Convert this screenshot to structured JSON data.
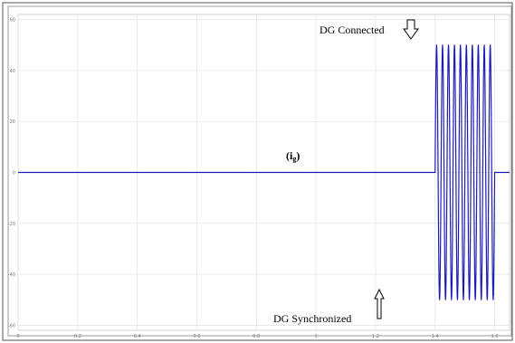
{
  "chart_data": {
    "type": "line",
    "title": "",
    "xlabel": "",
    "ylabel": "",
    "xlim": [
      0,
      1.65
    ],
    "ylim": [
      -62,
      62
    ],
    "x_ticks": [
      0,
      0.2,
      0.4,
      0.6,
      0.8,
      1,
      1.2,
      1.4,
      1.6
    ],
    "x_tick_labels": [
      "0",
      "0.2",
      "0.4",
      "0.6",
      "0.8",
      "1",
      "1.2",
      "1.4",
      "1.6"
    ],
    "y_ticks": [
      -60,
      -40,
      -20,
      0,
      20,
      40,
      60
    ],
    "y_tick_labels": [
      "-60",
      "-40",
      "-20",
      "0",
      "20",
      "40",
      "60"
    ],
    "grid": true,
    "line_color": "#1c1cb4",
    "series": [
      {
        "signal_label": "(i",
        "signal_subscript": "g",
        "signal_label_close": ")",
        "baseline": 0,
        "burst_start": 1.4,
        "burst_end": 1.6,
        "amplitude": 50,
        "frequency_hz": 50
      }
    ],
    "annotations": [
      {
        "text": "DG Connected",
        "x": 1.5,
        "y": 52,
        "arrow": "down"
      },
      {
        "text": "DG Synchronized",
        "x": 1.4,
        "y": -51,
        "arrow": "up"
      }
    ]
  }
}
